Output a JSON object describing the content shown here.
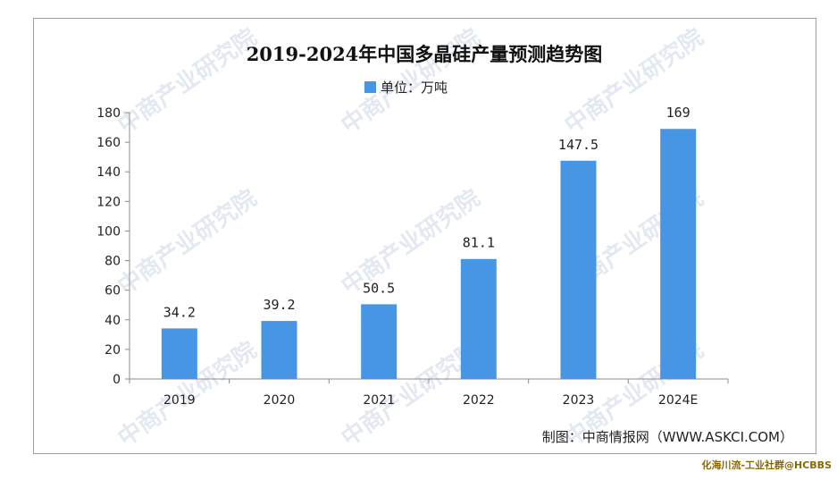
{
  "chart_data": {
    "type": "bar",
    "title": "2019-2024年中国多晶硅产量预测趋势图",
    "legend": "单位：万吨",
    "legend_position": "top-center",
    "categories": [
      "2019",
      "2020",
      "2021",
      "2022",
      "2023",
      "2024E"
    ],
    "values": [
      34.2,
      39.2,
      50.5,
      81.1,
      147.5,
      169
    ],
    "value_labels": [
      "34.2",
      "39.2",
      "50.5",
      "81.1",
      "147.5",
      "169"
    ],
    "ylim": [
      0,
      180
    ],
    "yticks": [
      "0",
      "20",
      "40",
      "60",
      "80",
      "100",
      "120",
      "140",
      "160",
      "180"
    ],
    "xlabel": "",
    "ylabel": "",
    "grid": false,
    "bar_color": "#4796e6"
  },
  "source": "制图：中商情报网（WWW.ASKCI.COM）",
  "watermark": "中商产业研究院",
  "credit": "化海川流-工业社群@HCBBS"
}
